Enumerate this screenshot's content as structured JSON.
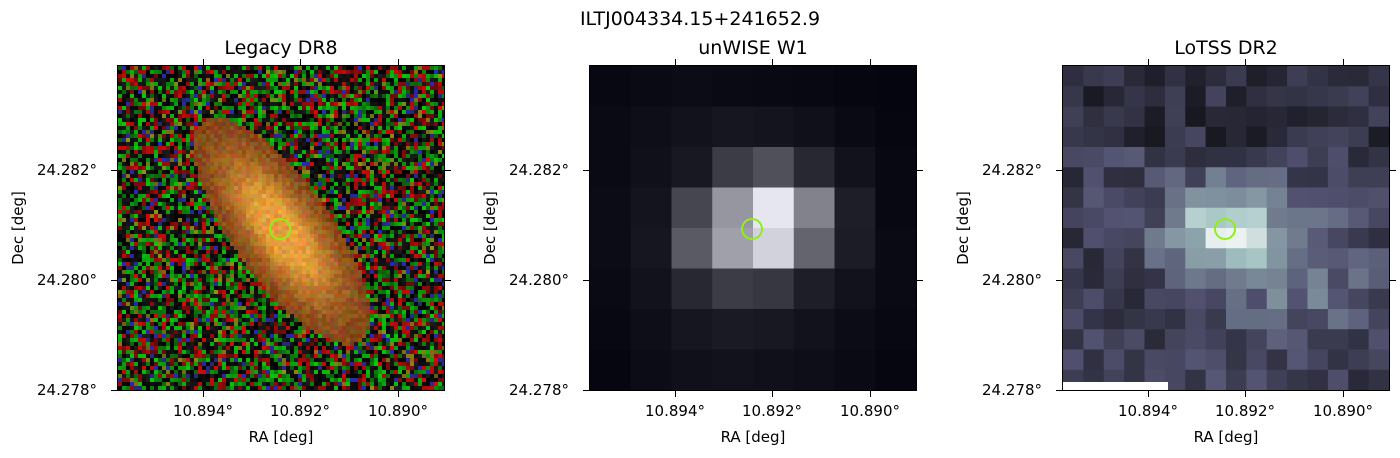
{
  "figure": {
    "suptitle": "ILTJ004334.15+241652.9"
  },
  "panels": [
    {
      "title": "Legacy DR8",
      "xlabel": "RA [deg]",
      "ylabel": "Dec [deg]",
      "xticks": [
        "10.894°",
        "10.892°",
        "10.890°"
      ],
      "yticks": [
        "24.282°",
        "24.280°",
        "24.278°"
      ],
      "image_kind": "rgb-noise-galaxy",
      "marker_color": "#90ee1a"
    },
    {
      "title": "unWISE W1",
      "xlabel": "RA [deg]",
      "ylabel": "Dec [deg]",
      "xticks": [
        "10.894°",
        "10.892°",
        "10.890°"
      ],
      "yticks": [
        "24.282°",
        "24.280°",
        "24.278°"
      ],
      "image_kind": "grayscale-pixels",
      "marker_color": "#90ee1a"
    },
    {
      "title": "LoTSS DR2",
      "xlabel": "RA [deg]",
      "ylabel": "Dec [deg]",
      "xticks": [
        "10.894°",
        "10.892°",
        "10.890°"
      ],
      "yticks": [
        "24.282°",
        "24.280°",
        "24.278°"
      ],
      "image_kind": "bone-pixels",
      "marker_color": "#90ee1a"
    }
  ]
}
